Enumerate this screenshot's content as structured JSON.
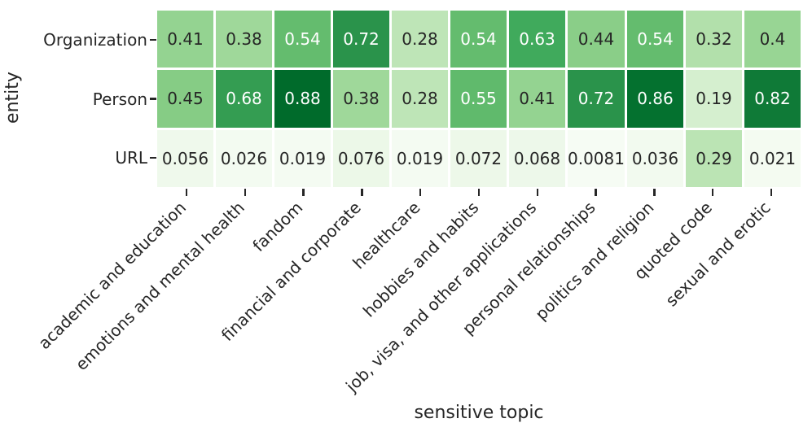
{
  "figure": {
    "background": "#ffffff",
    "text_color": "#262626"
  },
  "chart_data": {
    "type": "heatmap",
    "title": "",
    "xlabel": "sensitive topic",
    "ylabel": "entity",
    "rows": [
      "Organization",
      "Person",
      "URL"
    ],
    "columns": [
      "academic and education",
      "emotions and mental health",
      "fandom",
      "financial and corporate",
      "healthcare",
      "hobbies and habits",
      "job, visa, and other applications",
      "personal relationships",
      "politics and religion",
      "quoted code",
      "sexual and erotic"
    ],
    "values": [
      [
        0.41,
        0.38,
        0.54,
        0.72,
        0.28,
        0.54,
        0.63,
        0.44,
        0.54,
        0.32,
        0.4
      ],
      [
        0.45,
        0.68,
        0.88,
        0.38,
        0.28,
        0.55,
        0.41,
        0.72,
        0.86,
        0.19,
        0.82
      ],
      [
        0.056,
        0.026,
        0.019,
        0.076,
        0.019,
        0.072,
        0.068,
        0.0081,
        0.036,
        0.29,
        0.021
      ]
    ],
    "cell_labels": [
      [
        "0.41",
        "0.38",
        "0.54",
        "0.72",
        "0.28",
        "0.54",
        "0.63",
        "0.44",
        "0.54",
        "0.32",
        "0.4"
      ],
      [
        "0.45",
        "0.68",
        "0.88",
        "0.38",
        "0.28",
        "0.55",
        "0.41",
        "0.72",
        "0.86",
        "0.19",
        "0.82"
      ],
      [
        "0.056",
        "0.026",
        "0.019",
        "0.076",
        "0.019",
        "0.072",
        "0.068",
        "0.0081",
        "0.036",
        "0.29",
        "0.021"
      ]
    ],
    "colormap": "Greens",
    "vmin": 0,
    "vmax": 1,
    "colormap_stops": [
      "#f7fcf5",
      "#e5f5e0",
      "#c7e9c0",
      "#a1d99b",
      "#74c476",
      "#41ab5d",
      "#238b45",
      "#006d2c",
      "#00441b"
    ],
    "annotation_colors": {
      "dark": "#262626",
      "light": "#ffffff"
    },
    "gridline_color": "#ffffff",
    "legend": "none",
    "x_tick_rotation_deg": 45
  }
}
